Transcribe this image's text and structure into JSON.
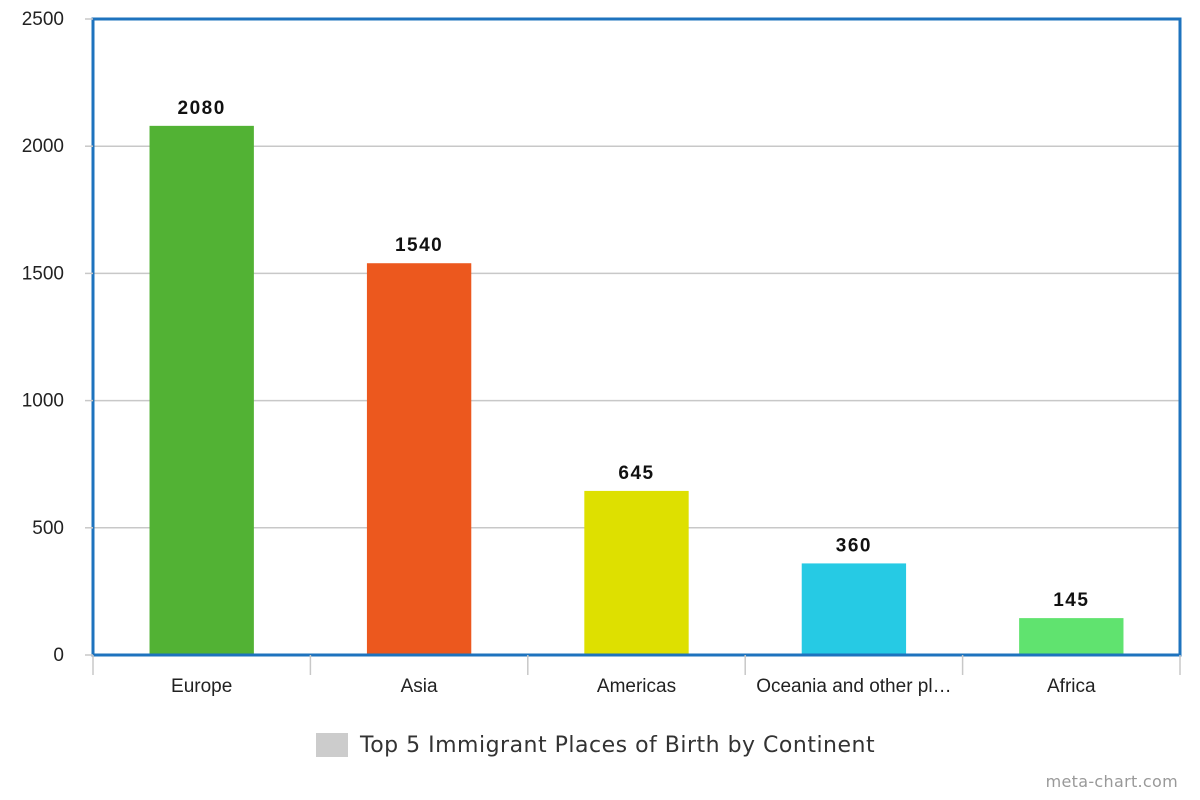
{
  "chart_data": {
    "type": "bar",
    "categories": [
      "Europe",
      "Asia",
      "Americas",
      "Oceania and other pl…",
      "Africa"
    ],
    "values": [
      2080,
      1540,
      645,
      360,
      145
    ],
    "value_labels": [
      "2080",
      "1540",
      "645",
      "360",
      "145"
    ],
    "colors": [
      "#52b234",
      "#ec581e",
      "#dee000",
      "#26cae4",
      "#60e36f"
    ],
    "ylim": [
      0,
      2500
    ],
    "yticks": [
      0,
      500,
      1000,
      1500,
      2000,
      2500
    ],
    "grid": true,
    "legend": {
      "label": "Top 5 Immigrant Places of Birth by Continent",
      "position": "bottom",
      "color": "#cccccc"
    },
    "frame_color": "#1e73be"
  },
  "footer": {
    "credit": "meta-chart.com"
  }
}
